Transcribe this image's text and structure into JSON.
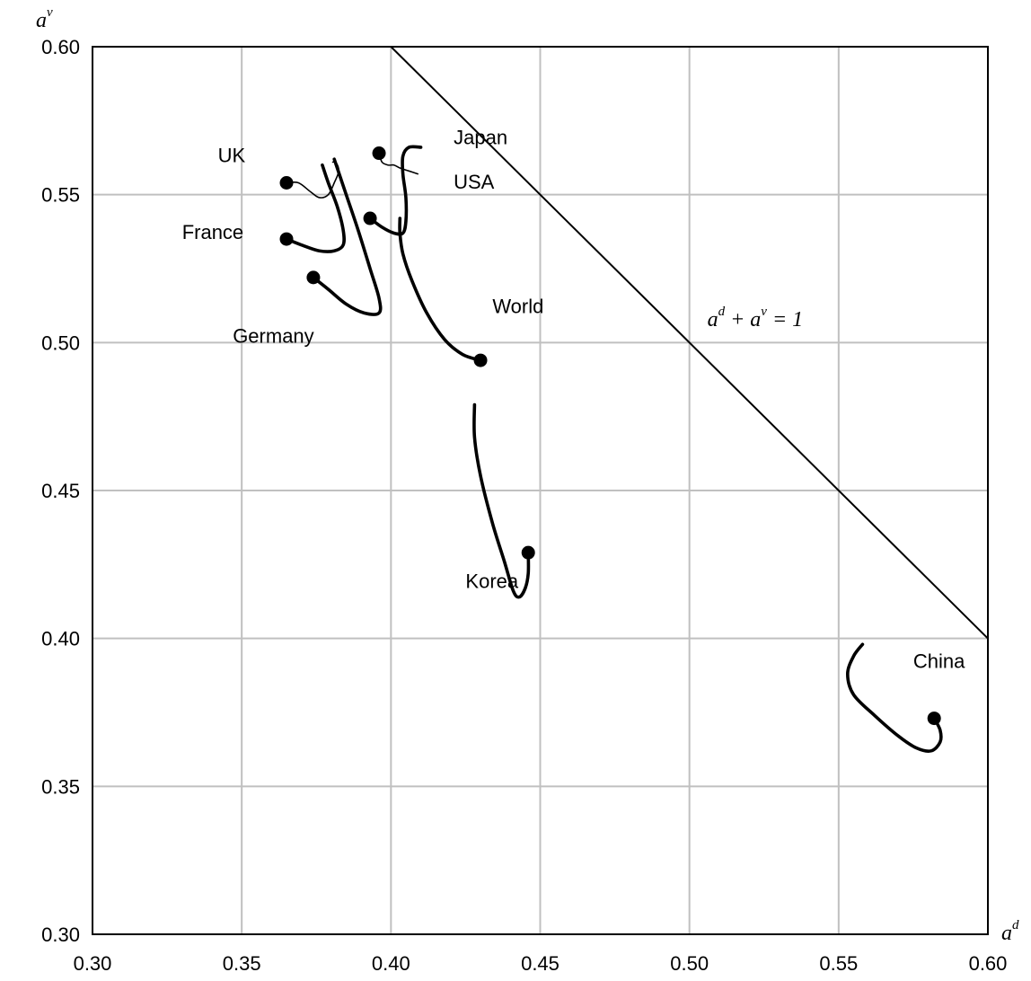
{
  "chart_data": {
    "type": "line",
    "xlim": [
      0.3,
      0.6
    ],
    "ylim": [
      0.3,
      0.6
    ],
    "x_ticks": [
      "0.30",
      "0.35",
      "0.40",
      "0.45",
      "0.50",
      "0.55",
      "0.60"
    ],
    "y_ticks": [
      "0.30",
      "0.35",
      "0.40",
      "0.45",
      "0.50",
      "0.55",
      "0.60"
    ],
    "xlabel": {
      "base": "a",
      "sup": "d"
    },
    "ylabel": {
      "base": "a",
      "sup": "v"
    },
    "grid": true,
    "reference_line": {
      "equation": {
        "t1": "a",
        "s1": "d",
        "op": "+",
        "t2": "a",
        "s2": "v",
        "eq": "= 1"
      },
      "points": [
        [
          0.4,
          0.6
        ],
        [
          0.6,
          0.4
        ]
      ]
    },
    "series": [
      {
        "name": "UK",
        "weight": "thin",
        "points": [
          [
            0.365,
            0.554
          ],
          [
            0.369,
            0.554
          ],
          [
            0.373,
            0.551
          ],
          [
            0.376,
            0.549
          ],
          [
            0.379,
            0.55
          ],
          [
            0.381,
            0.554
          ],
          [
            0.3825,
            0.558
          ],
          [
            0.3815,
            0.561
          ],
          [
            0.3805,
            0.561
          ]
        ]
      },
      {
        "name": "France",
        "weight": "thick",
        "points": [
          [
            0.365,
            0.535
          ],
          [
            0.37,
            0.533
          ],
          [
            0.376,
            0.531
          ],
          [
            0.381,
            0.531
          ],
          [
            0.384,
            0.533
          ],
          [
            0.384,
            0.538
          ],
          [
            0.382,
            0.546
          ],
          [
            0.379,
            0.554
          ],
          [
            0.377,
            0.56
          ]
        ]
      },
      {
        "name": "Germany",
        "weight": "thick",
        "points": [
          [
            0.374,
            0.522
          ],
          [
            0.379,
            0.518
          ],
          [
            0.385,
            0.513
          ],
          [
            0.391,
            0.51
          ],
          [
            0.396,
            0.51
          ],
          [
            0.396,
            0.515
          ],
          [
            0.393,
            0.525
          ],
          [
            0.389,
            0.538
          ],
          [
            0.385,
            0.55
          ],
          [
            0.381,
            0.562
          ]
        ]
      },
      {
        "name": "USA",
        "weight": "thin",
        "points": [
          [
            0.396,
            0.564
          ],
          [
            0.397,
            0.561
          ],
          [
            0.399,
            0.56
          ],
          [
            0.401,
            0.56
          ],
          [
            0.403,
            0.559
          ],
          [
            0.406,
            0.558
          ],
          [
            0.409,
            0.557
          ]
        ]
      },
      {
        "name": "Japan",
        "weight": "thick",
        "points": [
          [
            0.393,
            0.542
          ],
          [
            0.397,
            0.539
          ],
          [
            0.401,
            0.537
          ],
          [
            0.404,
            0.537
          ],
          [
            0.405,
            0.541
          ],
          [
            0.405,
            0.549
          ],
          [
            0.404,
            0.557
          ],
          [
            0.404,
            0.563
          ],
          [
            0.406,
            0.566
          ],
          [
            0.41,
            0.566
          ]
        ]
      },
      {
        "name": "World",
        "weight": "thick",
        "points": [
          [
            0.43,
            0.494
          ],
          [
            0.424,
            0.496
          ],
          [
            0.418,
            0.501
          ],
          [
            0.412,
            0.51
          ],
          [
            0.407,
            0.521
          ],
          [
            0.404,
            0.53
          ],
          [
            0.403,
            0.537
          ],
          [
            0.403,
            0.542
          ]
        ]
      },
      {
        "name": "Korea",
        "weight": "thick",
        "points": [
          [
            0.446,
            0.429
          ],
          [
            0.446,
            0.422
          ],
          [
            0.445,
            0.417
          ],
          [
            0.443,
            0.414
          ],
          [
            0.441,
            0.416
          ],
          [
            0.438,
            0.426
          ],
          [
            0.434,
            0.439
          ],
          [
            0.43,
            0.455
          ],
          [
            0.428,
            0.468
          ],
          [
            0.428,
            0.479
          ]
        ]
      },
      {
        "name": "China",
        "weight": "thick",
        "points": [
          [
            0.582,
            0.373
          ],
          [
            0.584,
            0.369
          ],
          [
            0.584,
            0.365
          ],
          [
            0.581,
            0.362
          ],
          [
            0.576,
            0.363
          ],
          [
            0.57,
            0.367
          ],
          [
            0.562,
            0.374
          ],
          [
            0.555,
            0.381
          ],
          [
            0.553,
            0.388
          ],
          [
            0.555,
            0.394
          ],
          [
            0.558,
            0.398
          ]
        ]
      }
    ],
    "labels": [
      {
        "text": "UK",
        "x": 0.342,
        "y": 0.561
      },
      {
        "text": "France",
        "x": 0.33,
        "y": 0.535
      },
      {
        "text": "Germany",
        "x": 0.347,
        "y": 0.5
      },
      {
        "text": "Japan",
        "x": 0.421,
        "y": 0.567
      },
      {
        "text": "USA",
        "x": 0.421,
        "y": 0.552
      },
      {
        "text": "World",
        "x": 0.434,
        "y": 0.51
      },
      {
        "text": "Korea",
        "x": 0.425,
        "y": 0.417
      },
      {
        "text": "China",
        "x": 0.575,
        "y": 0.39
      }
    ]
  }
}
